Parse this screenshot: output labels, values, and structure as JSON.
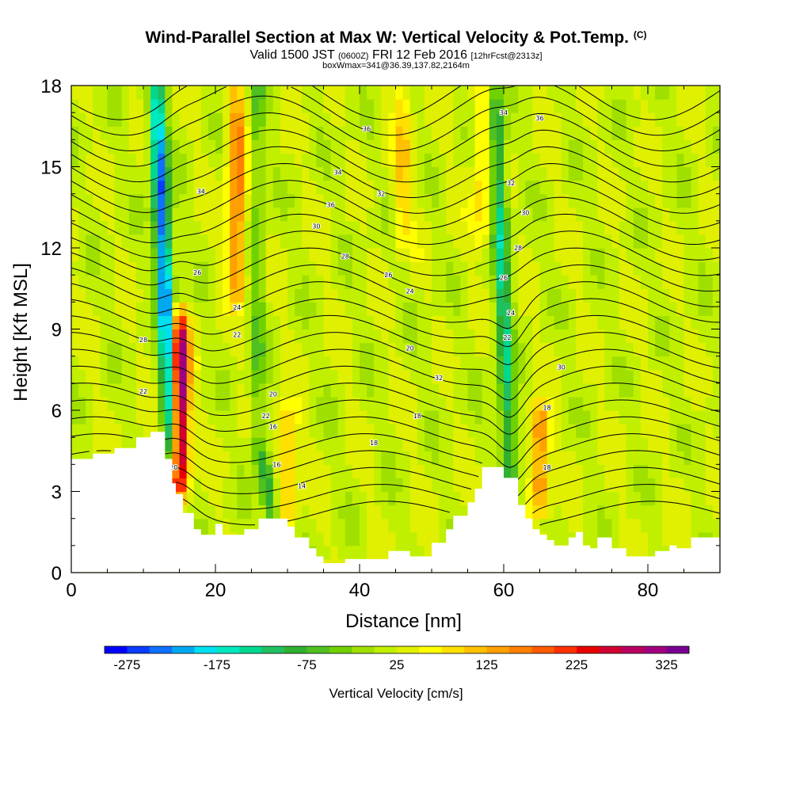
{
  "title": "Wind-Parallel Section at Max W: Vertical Velocity & Pot.Temp.",
  "title_mark": "(C)",
  "subtitle_main": "Valid 1500 JST",
  "subtitle_utc": "(0600Z)",
  "subtitle_date": "FRI 12 Feb 2016",
  "subtitle_fcst": "[12hrFcst@2313z]",
  "subtitle2": "boxWmax=341@36.39,137.82,2164m",
  "chart_data": {
    "type": "heatmap",
    "title": "Wind-Parallel Section at Max W: Vertical Velocity & Pot.Temp.",
    "xlabel": "Distance [nm]",
    "ylabel": "Height [Kft MSL]",
    "xlim": [
      0,
      90
    ],
    "ylim": [
      0,
      18
    ],
    "x_ticks": [
      0,
      20,
      40,
      60,
      80
    ],
    "y_ticks": [
      0,
      3,
      6,
      9,
      12,
      15,
      18
    ],
    "colorbar": {
      "label": "Vertical Velocity [cm/s]",
      "tick_labels": [
        "-275",
        "-175",
        "-75",
        "25",
        "125",
        "225",
        "325"
      ],
      "tick_values": [
        -275,
        -175,
        -75,
        25,
        125,
        225,
        325
      ],
      "levels": [
        -300,
        -275,
        -250,
        -225,
        -200,
        -175,
        -150,
        -125,
        -100,
        -75,
        -50,
        -25,
        0,
        25,
        50,
        75,
        100,
        125,
        150,
        175,
        200,
        225,
        250,
        275,
        300,
        325,
        350
      ],
      "colors": [
        "#0000ff",
        "#0a3cff",
        "#0f70ff",
        "#00a8f0",
        "#00e0f0",
        "#00e8c0",
        "#00d890",
        "#20c060",
        "#30b030",
        "#50c020",
        "#70d000",
        "#a0e000",
        "#c0f000",
        "#e0f000",
        "#ffff00",
        "#ffe000",
        "#ffc000",
        "#ffa000",
        "#ff8000",
        "#ff5a00",
        "#ff3000",
        "#e80000",
        "#d00030",
        "#b80060",
        "#a00080",
        "#780090"
      ]
    },
    "updrafts": [
      {
        "x": 15,
        "y_bottom": 3,
        "y_top": 9.5,
        "w_peak": 341
      },
      {
        "x": 23,
        "y_bottom": 10,
        "y_top": 18,
        "w_peak": 150
      },
      {
        "x": 30,
        "y_bottom": 2,
        "y_top": 6,
        "w_peak": 100
      },
      {
        "x": 65,
        "y_bottom": 2.5,
        "y_top": 6,
        "w_peak": 150
      },
      {
        "x": 46,
        "y_bottom": 12,
        "y_top": 18,
        "w_peak": 75
      },
      {
        "x": 57,
        "y_bottom": 12,
        "y_top": 18,
        "w_peak": 75
      }
    ],
    "downdrafts": [
      {
        "x": 14,
        "y_bottom": 4,
        "y_top": 18,
        "w_min": -275
      },
      {
        "x": 28,
        "y_bottom": 2,
        "y_top": 5,
        "w_min": -125
      },
      {
        "x": 61,
        "y_bottom": 2.5,
        "y_top": 18,
        "w_min": -150
      }
    ],
    "terrain": [
      [
        0,
        4.2
      ],
      [
        3,
        4.2
      ],
      [
        3,
        4.4
      ],
      [
        6,
        4.4
      ],
      [
        6,
        4.6
      ],
      [
        9,
        4.6
      ],
      [
        9,
        5.0
      ],
      [
        11,
        5.0
      ],
      [
        11,
        5.2
      ],
      [
        13,
        5.2
      ],
      [
        13,
        4.2
      ],
      [
        14,
        4.2
      ],
      [
        14,
        3.3
      ],
      [
        14.5,
        3.3
      ],
      [
        14.5,
        2.9
      ],
      [
        15.5,
        2.9
      ],
      [
        15.5,
        2.2
      ],
      [
        17,
        2.2
      ],
      [
        17,
        1.6
      ],
      [
        18,
        1.6
      ],
      [
        18,
        1.4
      ],
      [
        20,
        1.4
      ],
      [
        20,
        1.8
      ],
      [
        21,
        1.8
      ],
      [
        21,
        1.4
      ],
      [
        24,
        1.4
      ],
      [
        24,
        1.6
      ],
      [
        26,
        1.6
      ],
      [
        26,
        2.0
      ],
      [
        30,
        2.0
      ],
      [
        30,
        1.7
      ],
      [
        31,
        1.7
      ],
      [
        31,
        1.3
      ],
      [
        33,
        1.3
      ],
      [
        33,
        0.9
      ],
      [
        34,
        0.9
      ],
      [
        34,
        0.6
      ],
      [
        35,
        0.6
      ],
      [
        35,
        0.35
      ],
      [
        38,
        0.35
      ],
      [
        38,
        0.5
      ],
      [
        44,
        0.5
      ],
      [
        44,
        0.8
      ],
      [
        47,
        0.8
      ],
      [
        47,
        0.6
      ],
      [
        50,
        0.6
      ],
      [
        50,
        1.1
      ],
      [
        52,
        1.1
      ],
      [
        52,
        1.6
      ],
      [
        53,
        1.6
      ],
      [
        53,
        2.1
      ],
      [
        55,
        2.1
      ],
      [
        55,
        2.6
      ],
      [
        56,
        2.6
      ],
      [
        56,
        3.1
      ],
      [
        57,
        3.1
      ],
      [
        57,
        3.9
      ],
      [
        60,
        3.9
      ],
      [
        60,
        3.5
      ],
      [
        62,
        3.5
      ],
      [
        62,
        2.5
      ],
      [
        63,
        2.5
      ],
      [
        63,
        2.0
      ],
      [
        64,
        2.0
      ],
      [
        64,
        1.6
      ],
      [
        65,
        1.6
      ],
      [
        65,
        1.4
      ],
      [
        66,
        1.4
      ],
      [
        66,
        1.2
      ],
      [
        67,
        1.2
      ],
      [
        67,
        1.0
      ],
      [
        69,
        1.0
      ],
      [
        69,
        1.3
      ],
      [
        70,
        1.3
      ],
      [
        70,
        1.5
      ],
      [
        71,
        1.5
      ],
      [
        71,
        1.0
      ],
      [
        72,
        1.0
      ],
      [
        72,
        0.9
      ],
      [
        73,
        0.9
      ],
      [
        73,
        1.3
      ],
      [
        75,
        1.3
      ],
      [
        75,
        0.9
      ],
      [
        77,
        0.9
      ],
      [
        77,
        0.6
      ],
      [
        81,
        0.6
      ],
      [
        81,
        0.8
      ],
      [
        83,
        0.8
      ],
      [
        83,
        1.0
      ],
      [
        84,
        1.0
      ],
      [
        84,
        0.9
      ],
      [
        86,
        0.9
      ],
      [
        86,
        1.3
      ],
      [
        90,
        1.3
      ]
    ],
    "theta_labels": [
      "36",
      "36",
      "34",
      "34",
      "32",
      "30",
      "28",
      "26",
      "24",
      "22",
      "20",
      "18",
      "16",
      "14",
      "34",
      "32",
      "30",
      "28",
      "26",
      "24",
      "22",
      "20",
      "18",
      "18",
      "26",
      "22",
      "20",
      "28",
      "36",
      "30",
      "32",
      "24",
      "22",
      "18",
      "16"
    ]
  }
}
